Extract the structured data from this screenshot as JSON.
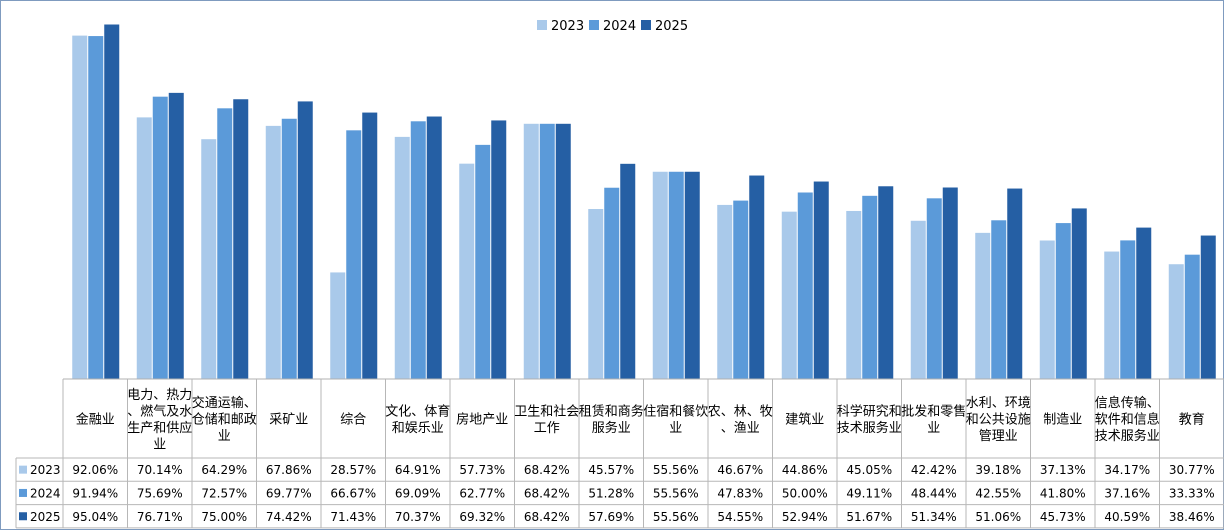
{
  "chart_data": {
    "type": "bar",
    "categories": [
      "金融业",
      "电力、热力、燃气及水生产和供应业",
      "交通运输、仓储和邮政业",
      "采矿业",
      "综合",
      "文化、体育和娱乐业",
      "房地产业",
      "卫生和社会工作",
      "租赁和商务服务业",
      "住宿和餐饮业",
      "农、林、牧、渔业",
      "建筑业",
      "科学研究和技术服务业",
      "批发和零售业",
      "水利、环境和公共设施管理业",
      "制造业",
      "信息传输、软件和信息技术服务业",
      "教育"
    ],
    "series": [
      {
        "name": "2023",
        "color": "#a9c9ea",
        "values": [
          92.06,
          70.14,
          64.29,
          67.86,
          28.57,
          64.91,
          57.73,
          68.42,
          45.57,
          55.56,
          46.67,
          44.86,
          45.05,
          42.42,
          39.18,
          37.13,
          34.17,
          30.77
        ],
        "labels": [
          "92.06%",
          "70.14%",
          "64.29%",
          "67.86%",
          "28.57%",
          "64.91%",
          "57.73%",
          "68.42%",
          "45.57%",
          "55.56%",
          "46.67%",
          "44.86%",
          "45.05%",
          "42.42%",
          "39.18%",
          "37.13%",
          "34.17%",
          "30.77%"
        ]
      },
      {
        "name": "2024",
        "color": "#5b9ad9",
        "values": [
          91.94,
          75.69,
          72.57,
          69.77,
          66.67,
          69.09,
          62.77,
          68.42,
          51.28,
          55.56,
          47.83,
          50.0,
          49.11,
          48.44,
          42.55,
          41.8,
          37.16,
          33.33
        ],
        "labels": [
          "91.94%",
          "75.69%",
          "72.57%",
          "69.77%",
          "66.67%",
          "69.09%",
          "62.77%",
          "68.42%",
          "51.28%",
          "55.56%",
          "47.83%",
          "50.00%",
          "49.11%",
          "48.44%",
          "42.55%",
          "41.80%",
          "37.16%",
          "33.33%"
        ]
      },
      {
        "name": "2025",
        "color": "#255fa4",
        "values": [
          95.04,
          76.71,
          75.0,
          74.42,
          71.43,
          70.37,
          69.32,
          68.42,
          57.69,
          55.56,
          54.55,
          52.94,
          51.67,
          51.34,
          51.06,
          45.73,
          40.59,
          38.46
        ],
        "labels": [
          "95.04%",
          "76.71%",
          "75.00%",
          "74.42%",
          "71.43%",
          "70.37%",
          "69.32%",
          "68.42%",
          "57.69%",
          "55.56%",
          "54.55%",
          "52.94%",
          "51.67%",
          "51.34%",
          "51.06%",
          "45.73%",
          "40.59%",
          "38.46%"
        ]
      }
    ],
    "ylim": [
      0,
      100
    ],
    "legend_position": "top-center",
    "grid": false,
    "data_table": true
  }
}
